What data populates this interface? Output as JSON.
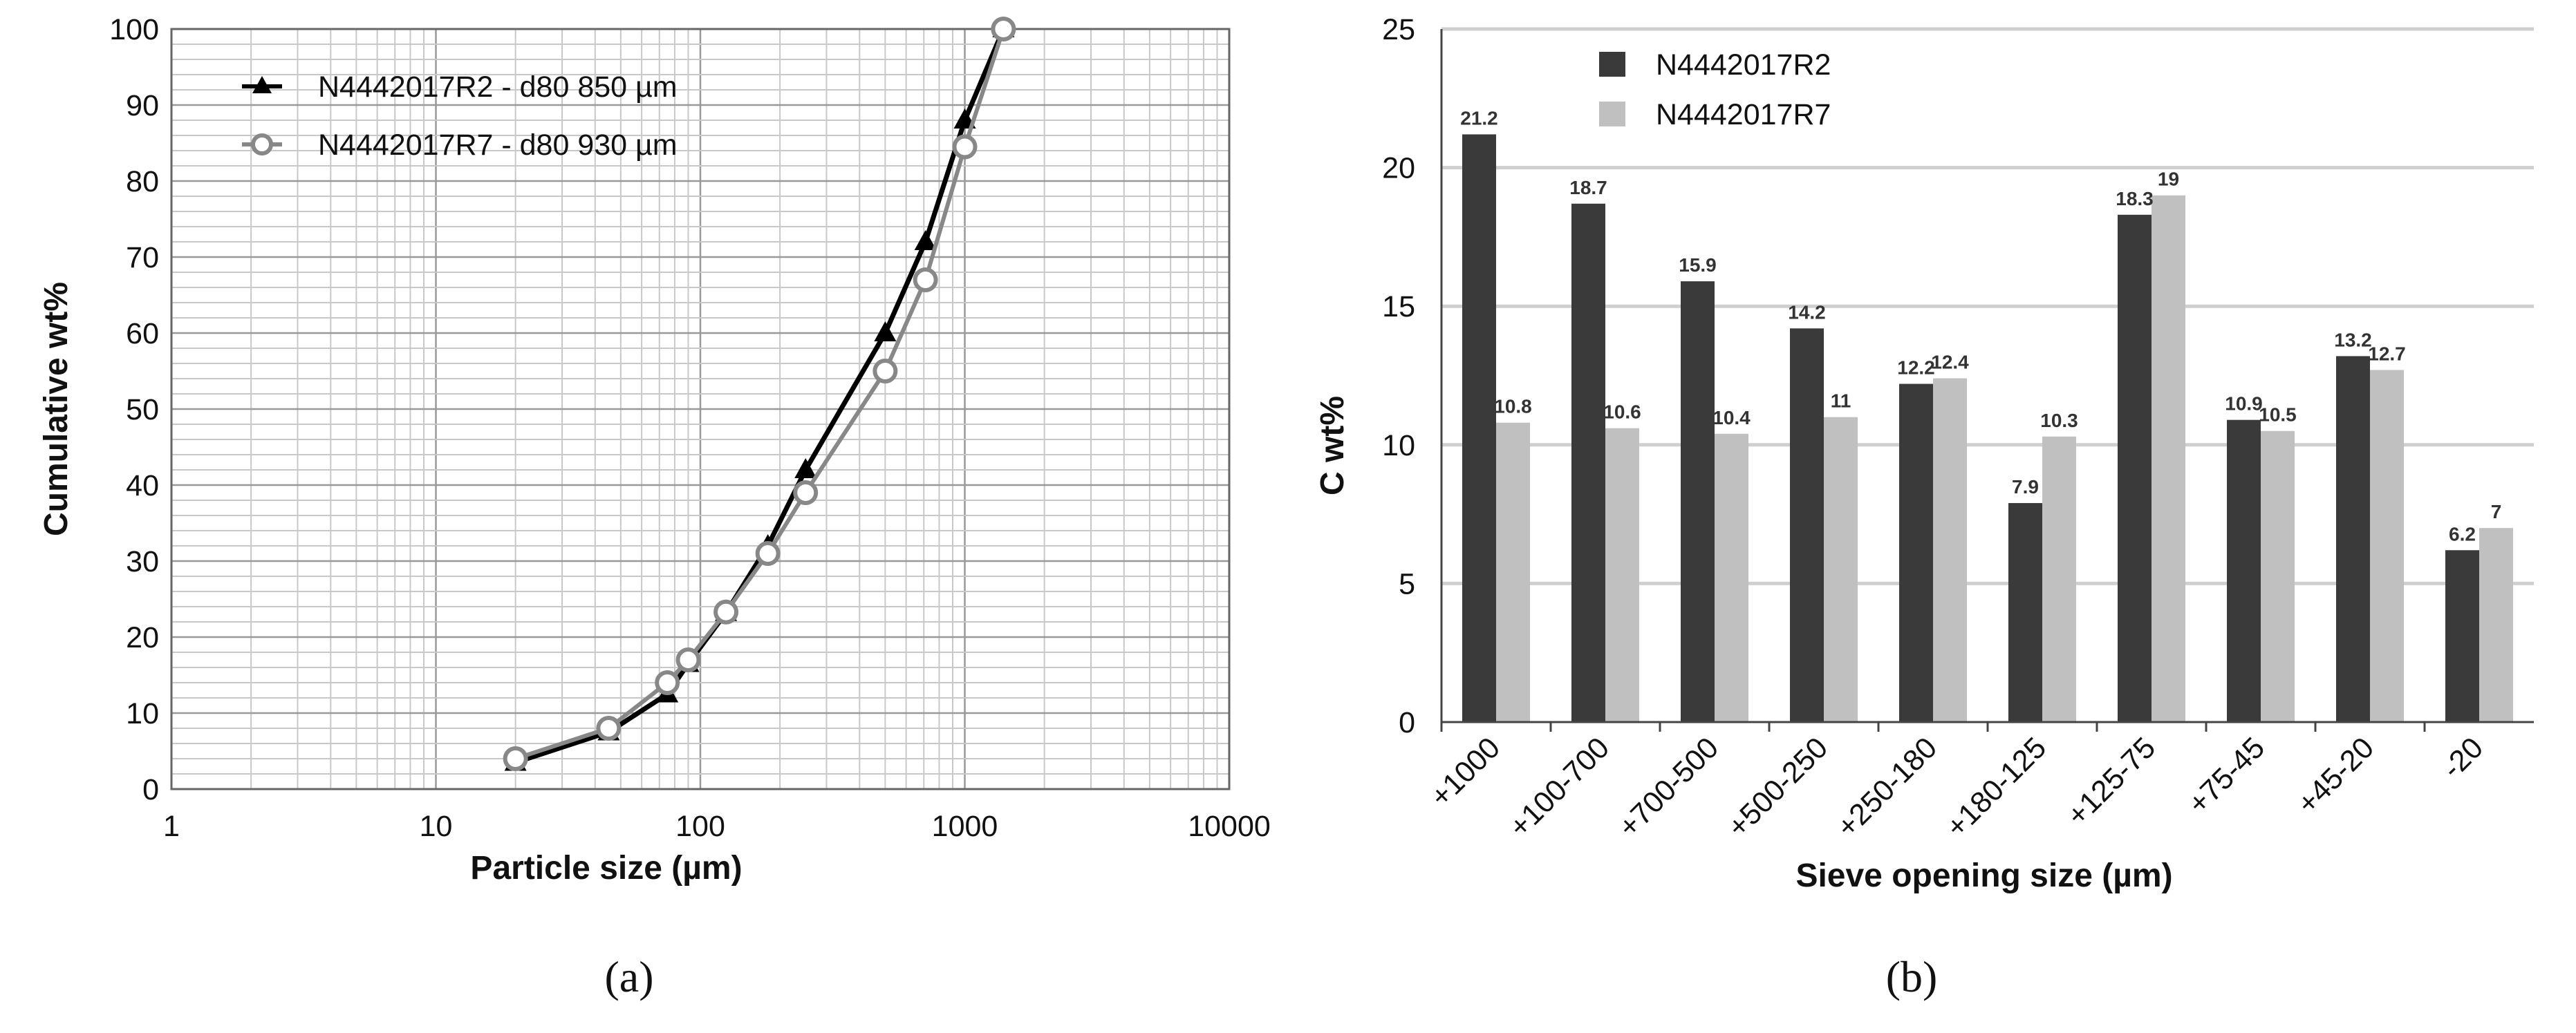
{
  "chart_data": [
    {
      "type": "line",
      "xscale": "log",
      "xlim": [
        1,
        10000
      ],
      "ylim": [
        0,
        100
      ],
      "xlabel": "Particle size (µm)",
      "ylabel": "Cumulative wt%",
      "x_ticks": [
        "1",
        "10",
        "100",
        "1000",
        "10000"
      ],
      "y_ticks": [
        "0",
        "10",
        "20",
        "30",
        "40",
        "50",
        "60",
        "70",
        "80",
        "90",
        "100"
      ],
      "grid": true,
      "legend_position": "top-left",
      "series": [
        {
          "name": "N4442017R2 - d80 850 µm",
          "marker": "triangle",
          "color": "#000000",
          "x": [
            20,
            45,
            75,
            90,
            125,
            180,
            250,
            500,
            710,
            1000,
            1400
          ],
          "y": [
            3.5,
            7.5,
            12.5,
            16.5,
            23.2,
            32.0,
            42.0,
            60.0,
            72.0,
            88.0,
            100.0
          ]
        },
        {
          "name": "N4442017R7 - d80 930 µm",
          "marker": "circle",
          "color": "#888888",
          "x": [
            20,
            45,
            75,
            90,
            125,
            180,
            250,
            500,
            710,
            1000,
            1400
          ],
          "y": [
            4.0,
            8.0,
            14.0,
            17.0,
            23.3,
            31.0,
            39.0,
            55.0,
            67.0,
            84.5,
            100.0
          ]
        }
      ],
      "caption": "(a)"
    },
    {
      "type": "bar",
      "categories": [
        "+1000",
        "+100-700",
        "+700-500",
        "+500-250",
        "+250-180",
        "+180-125",
        "+125-75",
        "+75-45",
        "+45-20",
        "-20"
      ],
      "ylim": [
        0,
        25
      ],
      "y_ticks": [
        "0",
        "5",
        "10",
        "15",
        "20",
        "25"
      ],
      "xlabel": "Sieve opening size (µm)",
      "ylabel": "C wt%",
      "grid": true,
      "legend_position": "top-left",
      "series": [
        {
          "name": "N4442017R2",
          "color": "#3a3a3a",
          "values": [
            21.2,
            18.7,
            15.9,
            14.2,
            12.2,
            7.9,
            18.3,
            10.9,
            13.2,
            6.2
          ],
          "labels": [
            "21.2",
            "18.7",
            "15.9",
            "14.2",
            "12.2",
            "7.9",
            "18.3",
            "10.9",
            "13.2",
            "6.2"
          ]
        },
        {
          "name": "N4442017R7",
          "color": "#c0c0c0",
          "values": [
            10.8,
            10.6,
            10.4,
            11,
            12.4,
            10.3,
            19,
            10.5,
            12.7,
            7
          ],
          "labels": [
            "10.8",
            "10.6",
            "10.4",
            "11",
            "12.4",
            "10.3",
            "19",
            "10.5",
            "12.7",
            "7"
          ]
        }
      ],
      "caption": "(b)"
    }
  ]
}
